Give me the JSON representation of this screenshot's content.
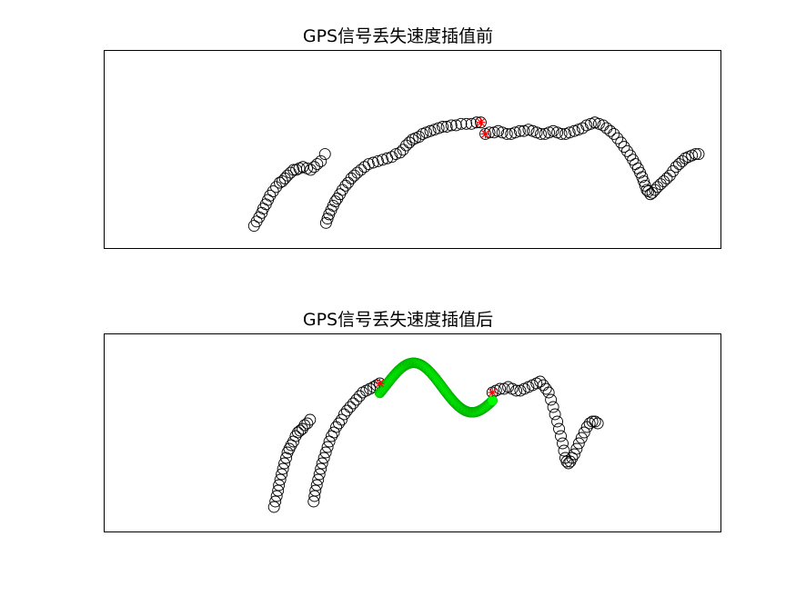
{
  "chart_data": [
    {
      "type": "scatter",
      "title": "GPS信号丢失速度插值前",
      "xlabel": "",
      "ylabel": "",
      "xlim": [
        0,
        100
      ],
      "ylim": [
        0,
        100
      ],
      "axis_ticks": "none",
      "grid": false,
      "series": [
        {
          "marker": "circle",
          "color": "#000000",
          "points": [
            [
              13.5,
              6
            ],
            [
              14,
              9
            ],
            [
              14.5,
              12
            ],
            [
              15,
              15
            ],
            [
              15.3,
              18
            ],
            [
              15.8,
              21
            ],
            [
              16.2,
              24
            ],
            [
              16.6,
              27
            ],
            [
              17.2,
              30
            ],
            [
              17.8,
              33
            ],
            [
              18.5,
              36
            ],
            [
              19,
              37
            ],
            [
              19.5,
              39
            ],
            [
              20,
              41
            ],
            [
              20.6,
              43
            ],
            [
              21.2,
              45
            ],
            [
              21.7,
              45
            ],
            [
              22.3,
              46
            ],
            [
              23,
              47
            ],
            [
              23.8,
              46
            ],
            [
              24.5,
              45
            ],
            [
              25.2,
              47
            ],
            [
              25.8,
              49
            ],
            [
              26.5,
              51
            ],
            [
              27.3,
              56
            ]
          ]
        },
        {
          "marker": "circle",
          "color": "#000000",
          "points": [
            [
              27.5,
              8
            ],
            [
              27.8,
              11
            ],
            [
              28.1,
              14
            ],
            [
              28.5,
              17
            ],
            [
              28.9,
              20
            ],
            [
              29.3,
              23
            ],
            [
              29.7,
              25
            ],
            [
              30.2,
              28
            ],
            [
              30.7,
              31
            ],
            [
              31.3,
              34
            ],
            [
              31.8,
              36
            ],
            [
              32.4,
              39
            ],
            [
              33,
              41
            ],
            [
              33.6,
              43
            ],
            [
              34.3,
              45
            ],
            [
              35,
              47
            ],
            [
              35.8,
              49
            ],
            [
              36.7,
              50
            ],
            [
              37.6,
              51
            ],
            [
              38.5,
              52
            ],
            [
              39.4,
              53
            ],
            [
              40.3,
              54
            ],
            [
              41.1,
              56
            ],
            [
              41.9,
              57
            ],
            [
              42.5,
              59
            ],
            [
              43.1,
              62
            ],
            [
              43.7,
              64
            ],
            [
              44.3,
              66
            ],
            [
              44.9,
              67
            ],
            [
              45.6,
              68
            ],
            [
              46.3,
              70
            ],
            [
              47,
              71
            ],
            [
              47.8,
              72
            ],
            [
              48.6,
              73
            ],
            [
              49.4,
              74
            ],
            [
              50.2,
              75
            ],
            [
              51,
              75
            ],
            [
              51.9,
              76
            ],
            [
              52.8,
              76
            ],
            [
              53.8,
              77
            ],
            [
              54.8,
              77
            ],
            [
              55.8,
              77
            ],
            [
              56.8,
              78
            ],
            [
              57.6,
              78
            ]
          ]
        },
        {
          "marker": "circle",
          "color": "#000000",
          "points": [
            [
              58.5,
              70
            ],
            [
              59.3,
              71
            ],
            [
              60.2,
              71
            ],
            [
              61,
              72
            ],
            [
              61.8,
              71
            ],
            [
              62.7,
              70
            ],
            [
              63.5,
              70
            ],
            [
              64.3,
              71
            ],
            [
              65.2,
              72
            ],
            [
              66,
              72
            ],
            [
              66.9,
              73
            ],
            [
              67.7,
              72
            ],
            [
              68.5,
              71
            ],
            [
              69.3,
              70
            ],
            [
              70.1,
              70
            ],
            [
              70.9,
              71
            ],
            [
              71.7,
              72
            ],
            [
              72.5,
              71
            ],
            [
              73.3,
              70
            ],
            [
              74.1,
              70
            ],
            [
              74.9,
              71
            ],
            [
              75.8,
              72
            ],
            [
              76.6,
              73
            ],
            [
              77.4,
              74
            ],
            [
              78.2,
              76
            ],
            [
              79,
              77
            ],
            [
              79.8,
              78
            ],
            [
              80.6,
              77
            ],
            [
              81.4,
              76
            ],
            [
              82.1,
              74
            ],
            [
              82.8,
              72
            ],
            [
              83.5,
              70
            ],
            [
              84.2,
              67
            ],
            [
              84.9,
              64
            ],
            [
              85.5,
              61
            ],
            [
              86.1,
              58
            ],
            [
              86.7,
              55
            ],
            [
              87.2,
              52
            ],
            [
              87.7,
              49
            ],
            [
              88.2,
              46
            ],
            [
              88.6,
              43
            ],
            [
              89,
              40
            ],
            [
              89.3,
              37
            ],
            [
              89.6,
              34
            ],
            [
              89.9,
              31
            ],
            [
              90.2,
              30
            ],
            [
              90.6,
              28
            ],
            [
              91,
              29
            ],
            [
              91.5,
              31
            ],
            [
              92,
              33
            ],
            [
              92.6,
              35
            ],
            [
              93.2,
              37
            ],
            [
              93.8,
              39
            ],
            [
              94.4,
              41
            ],
            [
              95,
              44
            ],
            [
              95.6,
              47
            ],
            [
              96.2,
              49
            ],
            [
              96.8,
              51
            ],
            [
              97.4,
              53
            ],
            [
              98,
              54
            ],
            [
              98.7,
              55
            ],
            [
              99.4,
              56
            ],
            [
              100,
              56
            ]
          ]
        },
        {
          "marker": "asterisk",
          "color": "#ff0000",
          "points": [
            [
              57.6,
              78
            ],
            [
              58.5,
              70
            ]
          ]
        }
      ]
    },
    {
      "type": "scatter",
      "title": "GPS信号丢失速度插值后",
      "xlabel": "",
      "ylabel": "",
      "xlim": [
        0,
        100
      ],
      "ylim": [
        0,
        100
      ],
      "axis_ticks": "none",
      "grid": false,
      "series": [
        {
          "marker": "circle",
          "color": "#000000",
          "points": [
            [
              16,
              6
            ],
            [
              16.3,
              9
            ],
            [
              16.6,
              12
            ],
            [
              16.9,
              15
            ],
            [
              17.1,
              18
            ],
            [
              17.4,
              21
            ],
            [
              17.7,
              24
            ],
            [
              18,
              27
            ],
            [
              18.3,
              30
            ],
            [
              18.7,
              33
            ],
            [
              19,
              36
            ],
            [
              19.4,
              38
            ],
            [
              19.8,
              40
            ],
            [
              20.3,
              42
            ],
            [
              20.8,
              45
            ],
            [
              21.3,
              47
            ],
            [
              21.8,
              48
            ],
            [
              22.3,
              49
            ],
            [
              22.8,
              51
            ],
            [
              23.4,
              52
            ],
            [
              24,
              54
            ]
          ]
        },
        {
          "marker": "circle",
          "color": "#000000",
          "points": [
            [
              24.8,
              9
            ],
            [
              25,
              12
            ],
            [
              25.2,
              15
            ],
            [
              25.5,
              18
            ],
            [
              25.8,
              21
            ],
            [
              26.1,
              24
            ],
            [
              26.4,
              27
            ],
            [
              26.7,
              30
            ],
            [
              27.1,
              33
            ],
            [
              27.5,
              36
            ],
            [
              27.9,
              39
            ],
            [
              28.3,
              42
            ],
            [
              28.8,
              45
            ],
            [
              29.3,
              47
            ],
            [
              29.8,
              50
            ],
            [
              30.4,
              52
            ],
            [
              31,
              54
            ],
            [
              31.6,
              57
            ],
            [
              32.2,
              59
            ],
            [
              32.9,
              61
            ],
            [
              33.6,
              63
            ],
            [
              34.3,
              65
            ],
            [
              35,
              67
            ],
            [
              35.7,
              69
            ],
            [
              36.5,
              70
            ],
            [
              37.3,
              71
            ],
            [
              38.1,
              72
            ],
            [
              38.8,
              73
            ],
            [
              39.5,
              74
            ]
          ]
        },
        {
          "marker": "circle",
          "color": "#000000",
          "points": [
            [
              64.5,
              69
            ],
            [
              65.3,
              70
            ],
            [
              66.2,
              71
            ],
            [
              67.1,
              71
            ],
            [
              68,
              72
            ],
            [
              68.9,
              71
            ],
            [
              69.8,
              70
            ],
            [
              70.7,
              70
            ],
            [
              71.6,
              71
            ],
            [
              72.5,
              72
            ],
            [
              73.4,
              73
            ],
            [
              74.3,
              74
            ],
            [
              75.1,
              75
            ],
            [
              75.8,
              73
            ],
            [
              76.4,
              71
            ],
            [
              77,
              69
            ],
            [
              77.5,
              65
            ],
            [
              78,
              61
            ],
            [
              78.4,
              57
            ],
            [
              78.9,
              53
            ],
            [
              79.3,
              49
            ],
            [
              79.7,
              45
            ],
            [
              80.1,
              41
            ],
            [
              80.4,
              37
            ],
            [
              80.7,
              33
            ],
            [
              81,
              31
            ],
            [
              81.4,
              30
            ],
            [
              81.8,
              31
            ],
            [
              82.2,
              33
            ],
            [
              82.7,
              35
            ],
            [
              83.2,
              38
            ],
            [
              83.7,
              41
            ],
            [
              84.3,
              44
            ],
            [
              84.9,
              47
            ],
            [
              85.5,
              50
            ],
            [
              86.1,
              52
            ],
            [
              86.7,
              53
            ],
            [
              87.3,
              53
            ],
            [
              87.9,
              52
            ]
          ]
        },
        {
          "marker": "interpolated",
          "color": "#00ff00",
          "x_range": [
            39.5,
            64.5
          ],
          "y_range": [
            67,
            94
          ]
        },
        {
          "marker": "asterisk",
          "color": "#ff0000",
          "points": [
            [
              39.5,
              74
            ],
            [
              64.5,
              69
            ]
          ]
        }
      ]
    }
  ]
}
